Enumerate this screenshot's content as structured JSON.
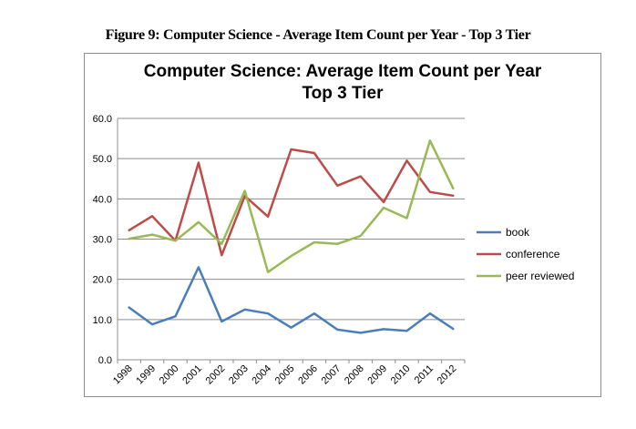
{
  "figure_caption": "Figure 9:  Computer Science - Average Item Count per Year - Top 3 Tier",
  "chart_data": {
    "type": "line",
    "title": [
      "Computer Science: Average Item Count per Year",
      "Top 3 Tier"
    ],
    "xlabel": "",
    "ylabel": "",
    "x": [
      "1998",
      "1999",
      "2000",
      "2001",
      "2002",
      "2003",
      "2004",
      "2005",
      "2006",
      "2007",
      "2008",
      "2009",
      "2010",
      "2011",
      "2012"
    ],
    "ylim": [
      0,
      60
    ],
    "yticks": [
      0,
      10,
      20,
      30,
      40,
      50,
      60
    ],
    "ytick_labels": [
      "0.0",
      "10.0",
      "20.0",
      "30.0",
      "40.0",
      "50.0",
      "60.0"
    ],
    "grid": "horizontal",
    "legend_position": "right",
    "series": [
      {
        "name": "book",
        "color": "#4a7ebb",
        "values": [
          13.0,
          8.8,
          10.8,
          23.0,
          9.5,
          12.5,
          11.5,
          8.0,
          11.5,
          7.5,
          6.7,
          7.6,
          7.2,
          11.5,
          7.7
        ]
      },
      {
        "name": "conference",
        "color": "#be4b48",
        "values": [
          32.2,
          35.7,
          29.6,
          49.0,
          26.0,
          40.7,
          35.6,
          52.3,
          51.4,
          43.3,
          45.6,
          39.2,
          49.5,
          41.7,
          40.8
        ]
      },
      {
        "name": "peer reviewed",
        "color": "#98b954",
        "values": [
          30.1,
          31.1,
          29.6,
          34.2,
          28.8,
          42.0,
          21.8,
          25.8,
          29.2,
          28.8,
          30.8,
          37.8,
          35.2,
          54.5,
          42.6
        ]
      }
    ]
  }
}
